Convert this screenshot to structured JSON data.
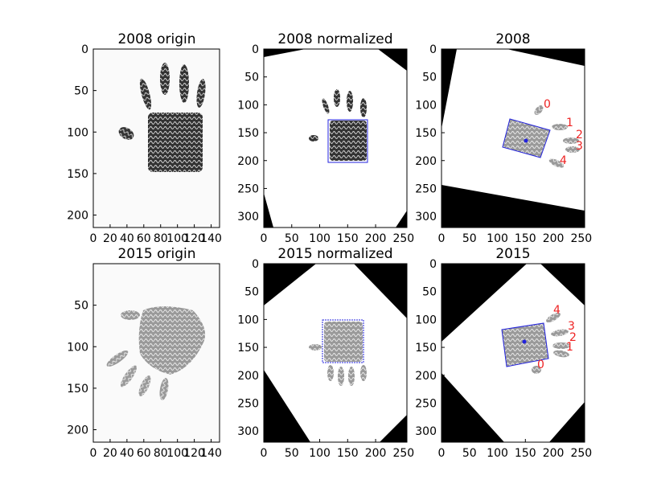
{
  "panels": [
    {
      "title": "2008 origin",
      "xticks": [
        0,
        20,
        40,
        60,
        80,
        100,
        120,
        140
      ],
      "yticks": [
        0,
        50,
        100,
        150,
        200
      ],
      "xlim": [
        0,
        150
      ],
      "ylim": [
        0,
        215
      ]
    },
    {
      "title": "2008 normalized",
      "xticks": [
        0,
        50,
        100,
        150,
        200,
        250
      ],
      "yticks": [
        0,
        50,
        100,
        150,
        200,
        250,
        300
      ],
      "xlim": [
        0,
        256
      ],
      "ylim": [
        0,
        320
      ]
    },
    {
      "title": "2008",
      "xticks": [
        0,
        50,
        100,
        150,
        200,
        250
      ],
      "yticks": [
        0,
        50,
        100,
        150,
        200,
        250,
        300
      ],
      "xlim": [
        0,
        256
      ],
      "ylim": [
        0,
        320
      ],
      "finger_labels": [
        "0",
        "1",
        "2",
        "3",
        "4"
      ]
    },
    {
      "title": "2015 origin",
      "xticks": [
        0,
        20,
        40,
        60,
        80,
        100,
        120,
        140
      ],
      "yticks": [
        50,
        100,
        150,
        200
      ],
      "xlim": [
        0,
        150
      ],
      "ylim": [
        0,
        215
      ]
    },
    {
      "title": "2015 normalized",
      "xticks": [
        0,
        50,
        100,
        150,
        200,
        250
      ],
      "yticks": [
        0,
        50,
        100,
        150,
        200,
        250,
        300
      ],
      "xlim": [
        0,
        256
      ],
      "ylim": [
        0,
        320
      ]
    },
    {
      "title": "2015",
      "xticks": [
        0,
        50,
        100,
        150,
        200,
        250
      ],
      "yticks": [
        0,
        50,
        100,
        150,
        200,
        250,
        300
      ],
      "xlim": [
        0,
        256
      ],
      "ylim": [
        0,
        320
      ],
      "finger_labels": [
        "4",
        "3",
        "2",
        "1",
        "0"
      ]
    }
  ],
  "colors": {
    "roi_box": "#2222dd",
    "finger_label": "#ee2222",
    "background_fill": "#000000"
  }
}
